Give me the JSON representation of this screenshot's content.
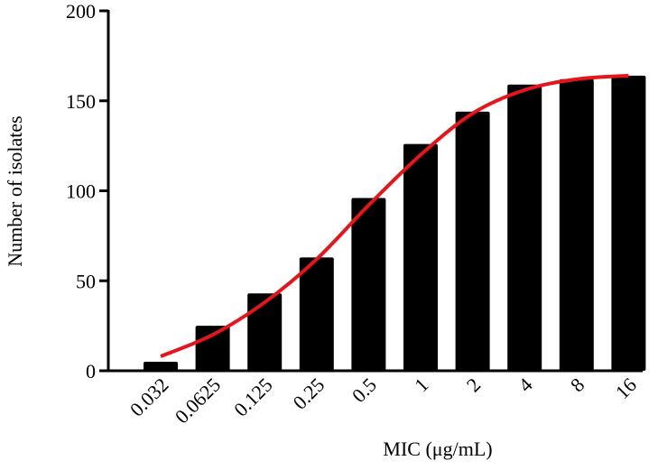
{
  "chart_data": {
    "type": "bar",
    "x_label": "MIC (μg/mL)",
    "y_label": "Number of isolates",
    "categories": [
      "0.032",
      "0.0625",
      "0.125",
      "0.25",
      "0.5",
      "1",
      "2",
      "4",
      "8",
      "16"
    ],
    "series": [
      {
        "type": "bar",
        "color": "#000000",
        "values": [
          5,
          25,
          43,
          63,
          96,
          126,
          144,
          159,
          162,
          164
        ]
      },
      {
        "type": "line",
        "color": "#e8141b",
        "values": [
          8,
          20,
          38,
          62,
          92,
          120,
          143,
          156,
          162,
          164
        ]
      }
    ],
    "ylim": [
      0,
      200
    ],
    "yticks": [
      0,
      50,
      100,
      150,
      200
    ],
    "grid": false
  }
}
